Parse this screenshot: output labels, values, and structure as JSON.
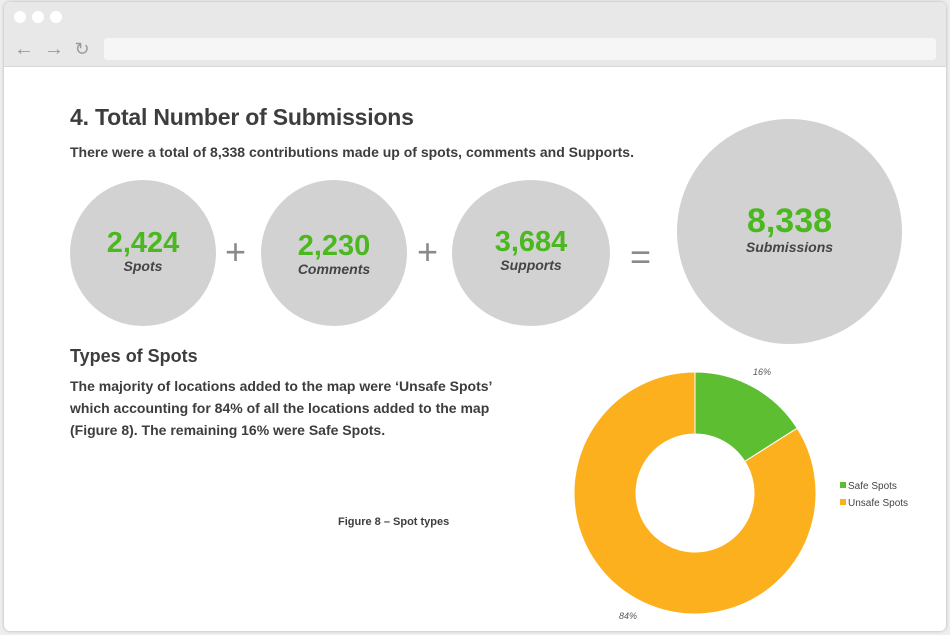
{
  "browser": {
    "back_icon": "back-arrow-icon",
    "forward_icon": "forward-arrow-icon",
    "reload_icon": "reload-icon",
    "url": ""
  },
  "section": {
    "title": "4. Total Number of Submissions",
    "lead": "There were a total of 8,338 contributions made up of spots, comments and Supports."
  },
  "stats": [
    {
      "value": "2,424",
      "label": "Spots"
    },
    {
      "value": "2,230",
      "label": "Comments"
    },
    {
      "value": "3,684",
      "label": "Supports"
    }
  ],
  "operators": [
    "+",
    "+",
    "="
  ],
  "total": {
    "value": "8,338",
    "label": "Submissions"
  },
  "spots": {
    "title": "Types of Spots",
    "paragraph": "The majority of locations added to the map were ‘Unsafe Spots’ which accounting for 84% of all the locations added to the map (Figure 8). The remaining 16% were Safe Spots.",
    "caption": "Figure 8 – Spot types"
  },
  "colors": {
    "accent": "#4cb81f",
    "safe": "#5dbe32",
    "unsafe": "#fcb01e",
    "circle": "#d2d2d2"
  },
  "chart_data": {
    "type": "pie",
    "donut": true,
    "title": "",
    "categories": [
      "Safe Spots",
      "Unsafe Spots"
    ],
    "values": [
      16,
      84
    ],
    "value_labels": [
      "16%",
      "84%"
    ],
    "colors": [
      "#5dbe32",
      "#fcb01e"
    ],
    "legend": "right"
  }
}
